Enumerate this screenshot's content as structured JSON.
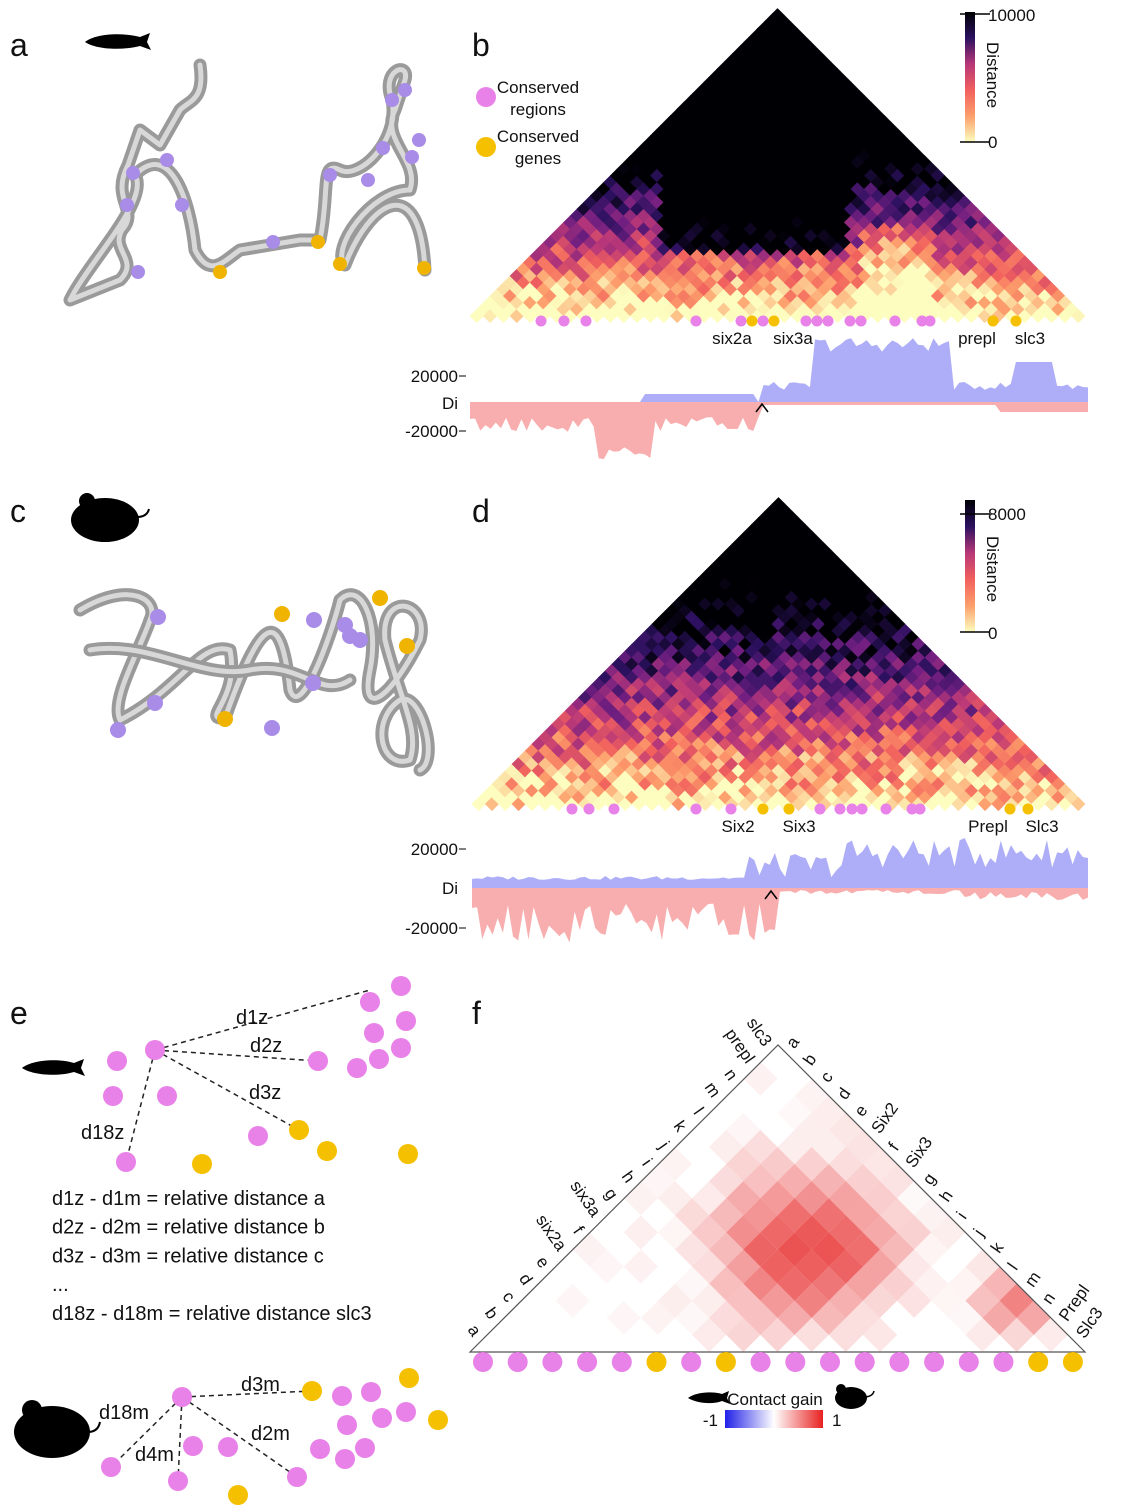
{
  "panel_a": {
    "label": "a"
  },
  "panel_b": {
    "label": "b",
    "legend": {
      "regions": [
        "Conserved",
        "regions"
      ],
      "genes": [
        "Conserved",
        "genes"
      ]
    },
    "colorbar": {
      "title": "Distance",
      "max": 10000,
      "min": 0
    },
    "genes": [
      "six2a",
      "six3a",
      "prepl",
      "slc3"
    ],
    "di_track": {
      "label": "Di",
      "ticks": [
        20000,
        -20000
      ]
    }
  },
  "panel_c": {
    "label": "c"
  },
  "panel_d": {
    "label": "d",
    "colorbar": {
      "title": "Distance",
      "max": 8000,
      "min": 0
    },
    "genes": [
      "Six2",
      "Six3",
      "Prepl",
      "Slc3"
    ],
    "di_track": {
      "label": "Di",
      "ticks": [
        20000,
        -20000
      ]
    }
  },
  "panel_e": {
    "label": "e",
    "zebrafish_distances": [
      "d1z",
      "d2z",
      "d3z",
      "d18z"
    ],
    "mouse_distances": [
      "d3m",
      "d2m",
      "d4m",
      "d18m"
    ],
    "equations": [
      "d1z - d1m = relative distance a",
      "d2z - d2m = relative distance b",
      "d3z - d3m = relative distance c",
      "...",
      "d18z - d18m = relative distance slc3"
    ]
  },
  "panel_f": {
    "label": "f",
    "zebrafish_labels": [
      "a",
      "b",
      "c",
      "d",
      "e",
      "six2a",
      "f",
      "six3a",
      "g",
      "h",
      "i",
      "j",
      "k",
      "l",
      "m",
      "n",
      "prepl",
      "slc3"
    ],
    "mouse_labels": [
      "a",
      "b",
      "c",
      "d",
      "e",
      "Six2",
      "f",
      "Six3",
      "g",
      "h",
      "i",
      "j",
      "k",
      "l",
      "m",
      "n",
      "Prepl",
      "Slc3"
    ],
    "colorbar": {
      "title": "Contact gain",
      "min": -1,
      "max": 1
    }
  }
}
